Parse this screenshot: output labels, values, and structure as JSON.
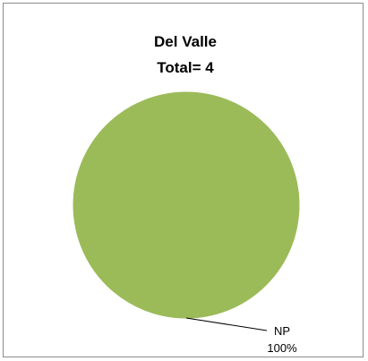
{
  "chart_data": {
    "type": "pie",
    "title": "Del Valle",
    "subtitle": "Total= 4",
    "categories": [
      "NP"
    ],
    "values": [
      4
    ],
    "percent_labels": [
      "100%"
    ],
    "colors": [
      "#9bbb59"
    ],
    "legend": "none"
  }
}
